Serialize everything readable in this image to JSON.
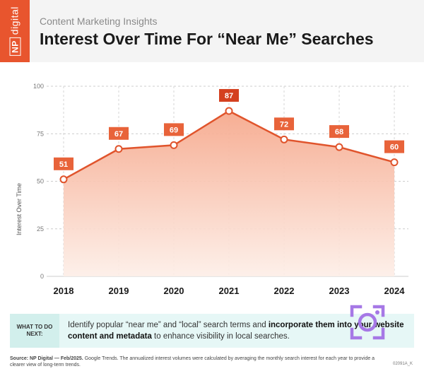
{
  "header": {
    "logo_text": "digital",
    "logo_box": "NP",
    "kicker": "Content Marketing Insights",
    "title": "Interest Over Time For “Near Me” Searches"
  },
  "chart_data": {
    "type": "area",
    "title": "Interest Over Time For “Near Me” Searches",
    "xlabel": "",
    "ylabel": "Interest Over Time",
    "categories": [
      "2018",
      "2019",
      "2020",
      "2021",
      "2022",
      "2023",
      "2024"
    ],
    "series": [
      {
        "values": [
          51,
          67,
          69,
          87,
          72,
          68,
          60
        ]
      }
    ],
    "ylim": [
      0,
      100
    ],
    "yticks": [
      0,
      25,
      50,
      75,
      100
    ],
    "grid": true,
    "legend": "none",
    "data_labels": true,
    "colors": {
      "line": "#e0542c",
      "label_bg": "#e8633a",
      "peak_label_bg": "#d4401f",
      "fill_top": "#f6a98d",
      "fill_bottom": "#fdeee7"
    }
  },
  "callout": {
    "tag": "WHAT TO DO NEXT:",
    "text_a": "Identify popular “near me” and “local” search terms and ",
    "text_b": "incorporate them into your website content and metadata",
    "text_c": " to enhance visibility in local searches."
  },
  "source": {
    "label": "Source: NP Digital — Feb/2025.",
    "text": " Google Trends. The annualized interest volumes were calculated by averaging the monthly search interest for each year to provide a clearer view of long-term trends."
  },
  "code": "02091A_K",
  "icons": {
    "camera": "camera-icon"
  }
}
